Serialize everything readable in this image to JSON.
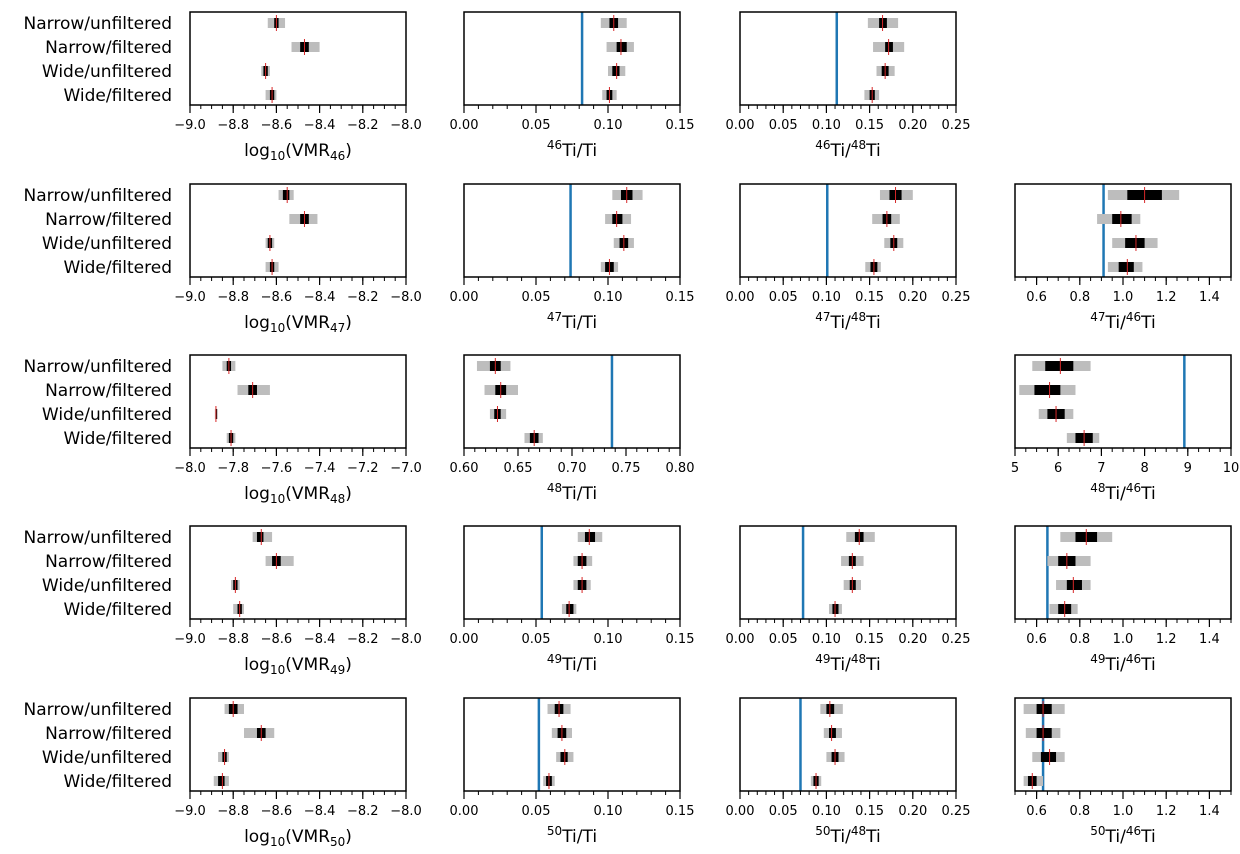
{
  "figure": {
    "row_labels": [
      "Narrow/unfiltered",
      "Narrow/filtered",
      "Wide/unfiltered",
      "Wide/filtered"
    ],
    "colors": {
      "outer_interval": "#bdbdbd",
      "inner_interval": "#000000",
      "median": "#d62728",
      "reference": "#1f77b4",
      "axes": "#000000"
    }
  },
  "chart_data": [
    {
      "type": "interval",
      "isotope": "46",
      "xlabel_pre": "log",
      "xlabel_sub": "10",
      "xlabel_mid": "(VMR",
      "xlabel_sub2": "46",
      "xlabel_post": ")",
      "xlim": [
        -9.0,
        -8.0
      ],
      "xticks": [
        -9.0,
        -8.8,
        -8.6,
        -8.4,
        -8.2,
        -8.0
      ],
      "ticklabels": [
        "−9.0",
        "−8.8",
        "−8.6",
        "−8.4",
        "−8.2",
        "−8.0"
      ],
      "minor_step": 0.05,
      "median": [
        -8.6,
        -8.47,
        -8.65,
        -8.62
      ],
      "inner": [
        [
          -8.61,
          -8.59
        ],
        [
          -8.49,
          -8.45
        ],
        [
          -8.66,
          -8.64
        ],
        [
          -8.63,
          -8.61
        ]
      ],
      "outer": [
        [
          -8.64,
          -8.56
        ],
        [
          -8.53,
          -8.4
        ],
        [
          -8.67,
          -8.63
        ],
        [
          -8.65,
          -8.6
        ]
      ]
    },
    {
      "type": "interval",
      "isotope": "46",
      "xlabel_sup": "46",
      "xlabel_post": "Ti/Ti",
      "xlim": [
        0,
        0.15
      ],
      "xticks": [
        0,
        0.05,
        0.1,
        0.15
      ],
      "ticklabels": [
        "0.00",
        "0.05",
        "0.10",
        "0.15"
      ],
      "minor_step": 0.01,
      "ref": 0.082,
      "median": [
        0.104,
        0.109,
        0.106,
        0.101
      ],
      "inner": [
        [
          0.101,
          0.107
        ],
        [
          0.106,
          0.113
        ],
        [
          0.103,
          0.108
        ],
        [
          0.099,
          0.103
        ]
      ],
      "outer": [
        [
          0.095,
          0.113
        ],
        [
          0.099,
          0.118
        ],
        [
          0.1,
          0.112
        ],
        [
          0.096,
          0.106
        ]
      ]
    },
    {
      "type": "interval",
      "isotope": "46",
      "xlabel_sup": "46",
      "xlabel_post": "Ti/",
      "xlabel_sup2": "48",
      "xlabel_post2": "Ti",
      "xlim": [
        0,
        0.25
      ],
      "xticks": [
        0,
        0.05,
        0.1,
        0.15,
        0.2,
        0.25
      ],
      "ticklabels": [
        "0.00",
        "0.05",
        "0.10",
        "0.15",
        "0.20",
        "0.25"
      ],
      "minor_step": 0.01,
      "ref": 0.112,
      "median": [
        0.165,
        0.172,
        0.168,
        0.153
      ],
      "inner": [
        [
          0.161,
          0.17
        ],
        [
          0.168,
          0.177
        ],
        [
          0.164,
          0.172
        ],
        [
          0.15,
          0.156
        ]
      ],
      "outer": [
        [
          0.148,
          0.183
        ],
        [
          0.154,
          0.19
        ],
        [
          0.158,
          0.179
        ],
        [
          0.144,
          0.161
        ]
      ]
    },
    null,
    {
      "type": "interval",
      "isotope": "47",
      "xlabel_pre": "log",
      "xlabel_sub": "10",
      "xlabel_mid": "(VMR",
      "xlabel_sub2": "47",
      "xlabel_post": ")",
      "xlim": [
        -9.0,
        -8.0
      ],
      "xticks": [
        -9.0,
        -8.8,
        -8.6,
        -8.4,
        -8.2,
        -8.0
      ],
      "ticklabels": [
        "−9.0",
        "−8.8",
        "−8.6",
        "−8.4",
        "−8.2",
        "−8.0"
      ],
      "minor_step": 0.05,
      "median": [
        -8.55,
        -8.47,
        -8.63,
        -8.62
      ],
      "inner": [
        [
          -8.57,
          -8.54
        ],
        [
          -8.49,
          -8.45
        ],
        [
          -8.64,
          -8.62
        ],
        [
          -8.63,
          -8.61
        ]
      ],
      "outer": [
        [
          -8.59,
          -8.52
        ],
        [
          -8.54,
          -8.41
        ],
        [
          -8.65,
          -8.61
        ],
        [
          -8.65,
          -8.59
        ]
      ]
    },
    {
      "type": "interval",
      "isotope": "47",
      "xlabel_sup": "47",
      "xlabel_post": "Ti/Ti",
      "xlim": [
        0,
        0.15
      ],
      "xticks": [
        0,
        0.05,
        0.1,
        0.15
      ],
      "ticklabels": [
        "0.00",
        "0.05",
        "0.10",
        "0.15"
      ],
      "minor_step": 0.01,
      "ref": 0.074,
      "median": [
        0.113,
        0.106,
        0.111,
        0.101
      ],
      "inner": [
        [
          0.109,
          0.117
        ],
        [
          0.103,
          0.11
        ],
        [
          0.108,
          0.114
        ],
        [
          0.098,
          0.104
        ]
      ],
      "outer": [
        [
          0.103,
          0.124
        ],
        [
          0.098,
          0.116
        ],
        [
          0.104,
          0.118
        ],
        [
          0.095,
          0.107
        ]
      ]
    },
    {
      "type": "interval",
      "isotope": "47",
      "xlabel_sup": "47",
      "xlabel_post": "Ti/",
      "xlabel_sup2": "48",
      "xlabel_post2": "Ti",
      "xlim": [
        0,
        0.25
      ],
      "xticks": [
        0,
        0.05,
        0.1,
        0.15,
        0.2,
        0.25
      ],
      "ticklabels": [
        "0.00",
        "0.05",
        "0.10",
        "0.15",
        "0.20",
        "0.25"
      ],
      "minor_step": 0.01,
      "ref": 0.101,
      "median": [
        0.18,
        0.17,
        0.178,
        0.155
      ],
      "inner": [
        [
          0.173,
          0.187
        ],
        [
          0.165,
          0.175
        ],
        [
          0.174,
          0.182
        ],
        [
          0.151,
          0.159
        ]
      ],
      "outer": [
        [
          0.162,
          0.2
        ],
        [
          0.153,
          0.185
        ],
        [
          0.167,
          0.189
        ],
        [
          0.145,
          0.163
        ]
      ]
    },
    {
      "type": "interval",
      "isotope": "47",
      "xlabel_sup": "47",
      "xlabel_post": "Ti/",
      "xlabel_sup2": "46",
      "xlabel_post2": "Ti",
      "xlim": [
        0.5,
        1.5
      ],
      "xticks": [
        0.6,
        0.8,
        1.0,
        1.2,
        1.4
      ],
      "ticklabels": [
        "0.6",
        "0.8",
        "1.0",
        "1.2",
        "1.4"
      ],
      "minor_step": 0.05,
      "ref": 0.91,
      "median": [
        1.1,
        0.99,
        1.06,
        1.02
      ],
      "inner": [
        [
          1.02,
          1.18
        ],
        [
          0.95,
          1.04
        ],
        [
          1.01,
          1.1
        ],
        [
          0.98,
          1.05
        ]
      ],
      "outer": [
        [
          0.93,
          1.26
        ],
        [
          0.88,
          1.08
        ],
        [
          0.95,
          1.16
        ],
        [
          0.93,
          1.09
        ]
      ]
    },
    {
      "type": "interval",
      "isotope": "48",
      "xlabel_pre": "log",
      "xlabel_sub": "10",
      "xlabel_mid": "(VMR",
      "xlabel_sub2": "48",
      "xlabel_post": ")",
      "xlim": [
        -8.0,
        -7.0
      ],
      "xticks": [
        -8.0,
        -7.8,
        -7.6,
        -7.4,
        -7.2,
        -7.0
      ],
      "ticklabels": [
        "−8.0",
        "−7.8",
        "−7.6",
        "−7.4",
        "−7.2",
        "−7.0"
      ],
      "minor_step": 0.05,
      "median": [
        -7.82,
        -7.71,
        -7.88,
        -7.81
      ],
      "inner": [
        [
          -7.83,
          -7.81
        ],
        [
          -7.73,
          -7.69
        ],
        [
          -7.881,
          -7.879
        ],
        [
          -7.82,
          -7.8
        ]
      ],
      "outer": [
        [
          -7.85,
          -7.79
        ],
        [
          -7.78,
          -7.63
        ],
        [
          -7.885,
          -7.875
        ],
        [
          -7.83,
          -7.79
        ]
      ]
    },
    {
      "type": "interval",
      "isotope": "48",
      "xlabel_sup": "48",
      "xlabel_post": "Ti/Ti",
      "xlim": [
        0.6,
        0.8
      ],
      "xticks": [
        0.6,
        0.65,
        0.7,
        0.75,
        0.8
      ],
      "ticklabels": [
        "0.60",
        "0.65",
        "0.70",
        "0.75",
        "0.80"
      ],
      "minor_step": 0.01,
      "ref": 0.737,
      "median": [
        0.629,
        0.634,
        0.631,
        0.665
      ],
      "inner": [
        [
          0.624,
          0.634
        ],
        [
          0.629,
          0.639
        ],
        [
          0.628,
          0.634
        ],
        [
          0.661,
          0.669
        ]
      ],
      "outer": [
        [
          0.612,
          0.643
        ],
        [
          0.619,
          0.65
        ],
        [
          0.624,
          0.639
        ],
        [
          0.656,
          0.673
        ]
      ]
    },
    null,
    {
      "type": "interval",
      "isotope": "48",
      "xlabel_sup": "48",
      "xlabel_post": "Ti/",
      "xlabel_sup2": "46",
      "xlabel_post2": "Ti",
      "xlim": [
        5,
        10
      ],
      "xticks": [
        5,
        6,
        7,
        8,
        9,
        10
      ],
      "ticklabels": [
        "5",
        "6",
        "7",
        "8",
        "9",
        "10"
      ],
      "minor_step": 0.25,
      "ref": 8.92,
      "median": [
        6.05,
        5.8,
        5.95,
        6.6
      ],
      "inner": [
        [
          5.7,
          6.35
        ],
        [
          5.45,
          6.05
        ],
        [
          5.75,
          6.15
        ],
        [
          6.4,
          6.8
        ]
      ],
      "outer": [
        [
          5.4,
          6.75
        ],
        [
          5.1,
          6.4
        ],
        [
          5.55,
          6.35
        ],
        [
          6.2,
          6.95
        ]
      ]
    },
    {
      "type": "interval",
      "isotope": "49",
      "xlabel_pre": "log",
      "xlabel_sub": "10",
      "xlabel_mid": "(VMR",
      "xlabel_sub2": "49",
      "xlabel_post": ")",
      "xlim": [
        -9.0,
        -8.0
      ],
      "xticks": [
        -9.0,
        -8.8,
        -8.6,
        -8.4,
        -8.2,
        -8.0
      ],
      "ticklabels": [
        "−9.0",
        "−8.8",
        "−8.6",
        "−8.4",
        "−8.2",
        "−8.0"
      ],
      "minor_step": 0.05,
      "median": [
        -8.67,
        -8.6,
        -8.79,
        -8.77
      ],
      "inner": [
        [
          -8.69,
          -8.66
        ],
        [
          -8.62,
          -8.58
        ],
        [
          -8.8,
          -8.78
        ],
        [
          -8.78,
          -8.76
        ]
      ],
      "outer": [
        [
          -8.71,
          -8.62
        ],
        [
          -8.65,
          -8.52
        ],
        [
          -8.81,
          -8.77
        ],
        [
          -8.8,
          -8.75
        ]
      ]
    },
    {
      "type": "interval",
      "isotope": "49",
      "xlabel_sup": "49",
      "xlabel_post": "Ti/Ti",
      "xlim": [
        0,
        0.15
      ],
      "xticks": [
        0,
        0.05,
        0.1,
        0.15
      ],
      "ticklabels": [
        "0.00",
        "0.05",
        "0.10",
        "0.15"
      ],
      "minor_step": 0.01,
      "ref": 0.054,
      "median": [
        0.087,
        0.082,
        0.082,
        0.073
      ],
      "inner": [
        [
          0.084,
          0.091
        ],
        [
          0.079,
          0.085
        ],
        [
          0.079,
          0.085
        ],
        [
          0.071,
          0.076
        ]
      ],
      "outer": [
        [
          0.079,
          0.096
        ],
        [
          0.076,
          0.089
        ],
        [
          0.076,
          0.088
        ],
        [
          0.068,
          0.078
        ]
      ]
    },
    {
      "type": "interval",
      "isotope": "49",
      "xlabel_sup": "49",
      "xlabel_post": "Ti/",
      "xlabel_sup2": "48",
      "xlabel_post2": "Ti",
      "xlim": [
        0,
        0.25
      ],
      "xticks": [
        0,
        0.05,
        0.1,
        0.15,
        0.2,
        0.25
      ],
      "ticklabels": [
        "0.00",
        "0.05",
        "0.10",
        "0.15",
        "0.20",
        "0.25"
      ],
      "minor_step": 0.01,
      "ref": 0.073,
      "median": [
        0.138,
        0.13,
        0.13,
        0.11
      ],
      "inner": [
        [
          0.133,
          0.143
        ],
        [
          0.126,
          0.134
        ],
        [
          0.127,
          0.134
        ],
        [
          0.107,
          0.114
        ]
      ],
      "outer": [
        [
          0.123,
          0.156
        ],
        [
          0.117,
          0.143
        ],
        [
          0.12,
          0.14
        ],
        [
          0.103,
          0.118
        ]
      ]
    },
    {
      "type": "interval",
      "isotope": "49",
      "xlabel_sup": "49",
      "xlabel_post": "Ti/",
      "xlabel_sup2": "46",
      "xlabel_post2": "Ti",
      "xlim": [
        0.5,
        1.5
      ],
      "xticks": [
        0.6,
        0.8,
        1.0,
        1.2,
        1.4
      ],
      "ticklabels": [
        "0.6",
        "0.8",
        "1.0",
        "1.2",
        "1.4"
      ],
      "minor_step": 0.05,
      "ref": 0.65,
      "median": [
        0.83,
        0.74,
        0.77,
        0.73
      ],
      "inner": [
        [
          0.78,
          0.88
        ],
        [
          0.7,
          0.78
        ],
        [
          0.74,
          0.81
        ],
        [
          0.7,
          0.76
        ]
      ],
      "outer": [
        [
          0.71,
          0.95
        ],
        [
          0.65,
          0.85
        ],
        [
          0.69,
          0.85
        ],
        [
          0.66,
          0.79
        ]
      ]
    },
    {
      "type": "interval",
      "isotope": "50",
      "xlabel_pre": "log",
      "xlabel_sub": "10",
      "xlabel_mid": "(VMR",
      "xlabel_sub2": "50",
      "xlabel_post": ")",
      "xlim": [
        -9.0,
        -8.0
      ],
      "xticks": [
        -9.0,
        -8.8,
        -8.6,
        -8.4,
        -8.2,
        -8.0
      ],
      "ticklabels": [
        "−9.0",
        "−8.8",
        "−8.6",
        "−8.4",
        "−8.2",
        "−8.0"
      ],
      "minor_step": 0.05,
      "median": [
        -8.8,
        -8.67,
        -8.84,
        -8.85
      ],
      "inner": [
        [
          -8.82,
          -8.78
        ],
        [
          -8.69,
          -8.65
        ],
        [
          -8.85,
          -8.83
        ],
        [
          -8.87,
          -8.84
        ]
      ],
      "outer": [
        [
          -8.84,
          -8.75
        ],
        [
          -8.75,
          -8.61
        ],
        [
          -8.87,
          -8.82
        ],
        [
          -8.89,
          -8.82
        ]
      ]
    },
    {
      "type": "interval",
      "isotope": "50",
      "xlabel_sup": "50",
      "xlabel_post": "Ti/Ti",
      "xlim": [
        0,
        0.15
      ],
      "xticks": [
        0,
        0.05,
        0.1,
        0.15
      ],
      "ticklabels": [
        "0.00",
        "0.05",
        "0.10",
        "0.15"
      ],
      "minor_step": 0.01,
      "ref": 0.052,
      "median": [
        0.066,
        0.068,
        0.07,
        0.059
      ],
      "inner": [
        [
          0.063,
          0.069
        ],
        [
          0.065,
          0.071
        ],
        [
          0.067,
          0.072
        ],
        [
          0.057,
          0.061
        ]
      ],
      "outer": [
        [
          0.058,
          0.074
        ],
        [
          0.061,
          0.075
        ],
        [
          0.064,
          0.076
        ],
        [
          0.055,
          0.063
        ]
      ]
    },
    {
      "type": "interval",
      "isotope": "50",
      "xlabel_sup": "50",
      "xlabel_post": "Ti/",
      "xlabel_sup2": "48",
      "xlabel_post2": "Ti",
      "xlim": [
        0,
        0.25
      ],
      "xticks": [
        0,
        0.05,
        0.1,
        0.15,
        0.2,
        0.25
      ],
      "ticklabels": [
        "0.00",
        "0.05",
        "0.10",
        "0.15",
        "0.20",
        "0.25"
      ],
      "minor_step": 0.01,
      "ref": 0.07,
      "median": [
        0.104,
        0.106,
        0.11,
        0.088
      ],
      "inner": [
        [
          0.1,
          0.109
        ],
        [
          0.103,
          0.111
        ],
        [
          0.106,
          0.114
        ],
        [
          0.085,
          0.091
        ]
      ],
      "outer": [
        [
          0.093,
          0.119
        ],
        [
          0.097,
          0.118
        ],
        [
          0.1,
          0.121
        ],
        [
          0.082,
          0.094
        ]
      ]
    },
    {
      "type": "interval",
      "isotope": "50",
      "xlabel_sup": "50",
      "xlabel_post": "Ti/",
      "xlabel_sup2": "46",
      "xlabel_post2": "Ti",
      "xlim": [
        0.5,
        1.5
      ],
      "xticks": [
        0.6,
        0.8,
        1.0,
        1.2,
        1.4
      ],
      "ticklabels": [
        "0.6",
        "0.8",
        "1.0",
        "1.2",
        "1.4"
      ],
      "minor_step": 0.05,
      "ref": 0.63,
      "median": [
        0.63,
        0.63,
        0.66,
        0.58
      ],
      "inner": [
        [
          0.6,
          0.67
        ],
        [
          0.6,
          0.67
        ],
        [
          0.62,
          0.69
        ],
        [
          0.56,
          0.6
        ]
      ],
      "outer": [
        [
          0.54,
          0.73
        ],
        [
          0.55,
          0.71
        ],
        [
          0.58,
          0.73
        ],
        [
          0.54,
          0.63
        ]
      ]
    }
  ]
}
